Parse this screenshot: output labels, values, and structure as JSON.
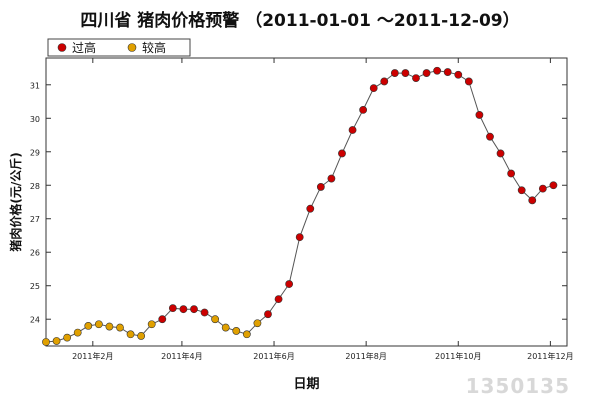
{
  "title": "四川省 猪肉价格预警 （2011-01-01 ～2011-12-09）",
  "watermark": "1350135",
  "colors": {
    "high": "#cc0000",
    "elevated": "#e0a000",
    "line": "#555555"
  },
  "legend": [
    {
      "key": "high",
      "label": "过高"
    },
    {
      "key": "elevated",
      "label": "较高"
    }
  ],
  "chart_data": {
    "type": "line",
    "title": "四川省 猪肉价格预警 （2011-01-01 ～2011-12-09）",
    "xlabel": "日期",
    "ylabel": "猪肉价格(元/公斤)",
    "ylim": [
      23.2,
      31.8
    ],
    "yticks": [
      24,
      25,
      26,
      27,
      28,
      29,
      30,
      31
    ],
    "xlim": [
      "2011-01-01",
      "2011-12-12"
    ],
    "xticks": [
      {
        "date": "2011-02-01",
        "label": "2011年2月"
      },
      {
        "date": "2011-04-01",
        "label": "2011年4月"
      },
      {
        "date": "2011-06-01",
        "label": "2011年6月"
      },
      {
        "date": "2011-08-01",
        "label": "2011年8月"
      },
      {
        "date": "2011-10-01",
        "label": "2011年10月"
      },
      {
        "date": "2011-12-01",
        "label": "2011年12月"
      }
    ],
    "grid": false,
    "legend_position": "top-left",
    "series": [
      {
        "name": "猪肉价格",
        "points": [
          {
            "x": "2011-01-01",
            "y": 23.32,
            "level": "elevated"
          },
          {
            "x": "2011-01-08",
            "y": 23.35,
            "level": "elevated"
          },
          {
            "x": "2011-01-15",
            "y": 23.45,
            "level": "elevated"
          },
          {
            "x": "2011-01-22",
            "y": 23.6,
            "level": "elevated"
          },
          {
            "x": "2011-01-29",
            "y": 23.8,
            "level": "elevated"
          },
          {
            "x": "2011-02-05",
            "y": 23.85,
            "level": "elevated"
          },
          {
            "x": "2011-02-12",
            "y": 23.78,
            "level": "elevated"
          },
          {
            "x": "2011-02-19",
            "y": 23.75,
            "level": "elevated"
          },
          {
            "x": "2011-02-26",
            "y": 23.55,
            "level": "elevated"
          },
          {
            "x": "2011-03-05",
            "y": 23.5,
            "level": "elevated"
          },
          {
            "x": "2011-03-12",
            "y": 23.85,
            "level": "elevated"
          },
          {
            "x": "2011-03-19",
            "y": 24.0,
            "level": "high"
          },
          {
            "x": "2011-03-26",
            "y": 24.33,
            "level": "high"
          },
          {
            "x": "2011-04-02",
            "y": 24.3,
            "level": "high"
          },
          {
            "x": "2011-04-09",
            "y": 24.3,
            "level": "high"
          },
          {
            "x": "2011-04-16",
            "y": 24.2,
            "level": "high"
          },
          {
            "x": "2011-04-23",
            "y": 24.0,
            "level": "elevated"
          },
          {
            "x": "2011-04-30",
            "y": 23.75,
            "level": "elevated"
          },
          {
            "x": "2011-05-07",
            "y": 23.65,
            "level": "elevated"
          },
          {
            "x": "2011-05-14",
            "y": 23.55,
            "level": "elevated"
          },
          {
            "x": "2011-05-21",
            "y": 23.88,
            "level": "elevated"
          },
          {
            "x": "2011-05-28",
            "y": 24.15,
            "level": "high"
          },
          {
            "x": "2011-06-04",
            "y": 24.6,
            "level": "high"
          },
          {
            "x": "2011-06-11",
            "y": 25.05,
            "level": "high"
          },
          {
            "x": "2011-06-18",
            "y": 26.45,
            "level": "high"
          },
          {
            "x": "2011-06-25",
            "y": 27.3,
            "level": "high"
          },
          {
            "x": "2011-07-02",
            "y": 27.95,
            "level": "high"
          },
          {
            "x": "2011-07-09",
            "y": 28.2,
            "level": "high"
          },
          {
            "x": "2011-07-16",
            "y": 28.95,
            "level": "high"
          },
          {
            "x": "2011-07-23",
            "y": 29.65,
            "level": "high"
          },
          {
            "x": "2011-07-30",
            "y": 30.25,
            "level": "high"
          },
          {
            "x": "2011-08-06",
            "y": 30.9,
            "level": "high"
          },
          {
            "x": "2011-08-13",
            "y": 31.1,
            "level": "high"
          },
          {
            "x": "2011-08-20",
            "y": 31.35,
            "level": "high"
          },
          {
            "x": "2011-08-27",
            "y": 31.35,
            "level": "high"
          },
          {
            "x": "2011-09-03",
            "y": 31.2,
            "level": "high"
          },
          {
            "x": "2011-09-10",
            "y": 31.35,
            "level": "high"
          },
          {
            "x": "2011-09-17",
            "y": 31.42,
            "level": "high"
          },
          {
            "x": "2011-09-24",
            "y": 31.38,
            "level": "high"
          },
          {
            "x": "2011-10-01",
            "y": 31.3,
            "level": "high"
          },
          {
            "x": "2011-10-08",
            "y": 31.1,
            "level": "high"
          },
          {
            "x": "2011-10-15",
            "y": 30.1,
            "level": "high"
          },
          {
            "x": "2011-10-22",
            "y": 29.45,
            "level": "high"
          },
          {
            "x": "2011-10-29",
            "y": 28.95,
            "level": "high"
          },
          {
            "x": "2011-11-05",
            "y": 28.35,
            "level": "high"
          },
          {
            "x": "2011-11-12",
            "y": 27.85,
            "level": "high"
          },
          {
            "x": "2011-11-19",
            "y": 27.55,
            "level": "high"
          },
          {
            "x": "2011-11-26",
            "y": 27.9,
            "level": "high"
          },
          {
            "x": "2011-12-03",
            "y": 28.0,
            "level": "high"
          }
        ]
      }
    ]
  }
}
